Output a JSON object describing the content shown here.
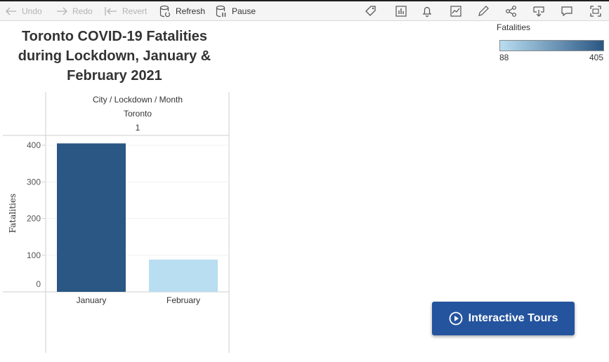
{
  "toolbar": {
    "undo": "Undo",
    "redo": "Redo",
    "revert": "Revert",
    "refresh": "Refresh",
    "pause": "Pause",
    "icons": [
      "tag-icon",
      "bar-chart-icon",
      "bell-icon",
      "line-chart-icon",
      "pencil-icon",
      "share-icon",
      "download-icon",
      "comment-icon",
      "fullscreen-icon"
    ]
  },
  "title": {
    "line1": "Toronto COVID-19 Fatalities",
    "line2": "during Lockdown, January &",
    "line3": "February 2021"
  },
  "legend": {
    "title": "Fatalities",
    "min": "88",
    "max": "405",
    "color_min": "#b9ddf1",
    "color_max": "#2a5783"
  },
  "header": {
    "dims": "City / Lockdown / Month",
    "city": "Toronto",
    "lockdown": "1"
  },
  "chart_data": {
    "type": "bar",
    "title": "Toronto COVID-19 Fatalities during Lockdown, January & February 2021",
    "xlabel": "",
    "ylabel": "Fatalities",
    "categories": [
      "January",
      "February"
    ],
    "values": [
      405,
      88
    ],
    "colors": [
      "#2a5783",
      "#b9ddf1"
    ],
    "yticks": [
      0,
      100,
      200,
      300,
      400
    ],
    "ylim": [
      0,
      420
    ],
    "grid": true
  },
  "tours": {
    "label": "Interactive Tours"
  }
}
